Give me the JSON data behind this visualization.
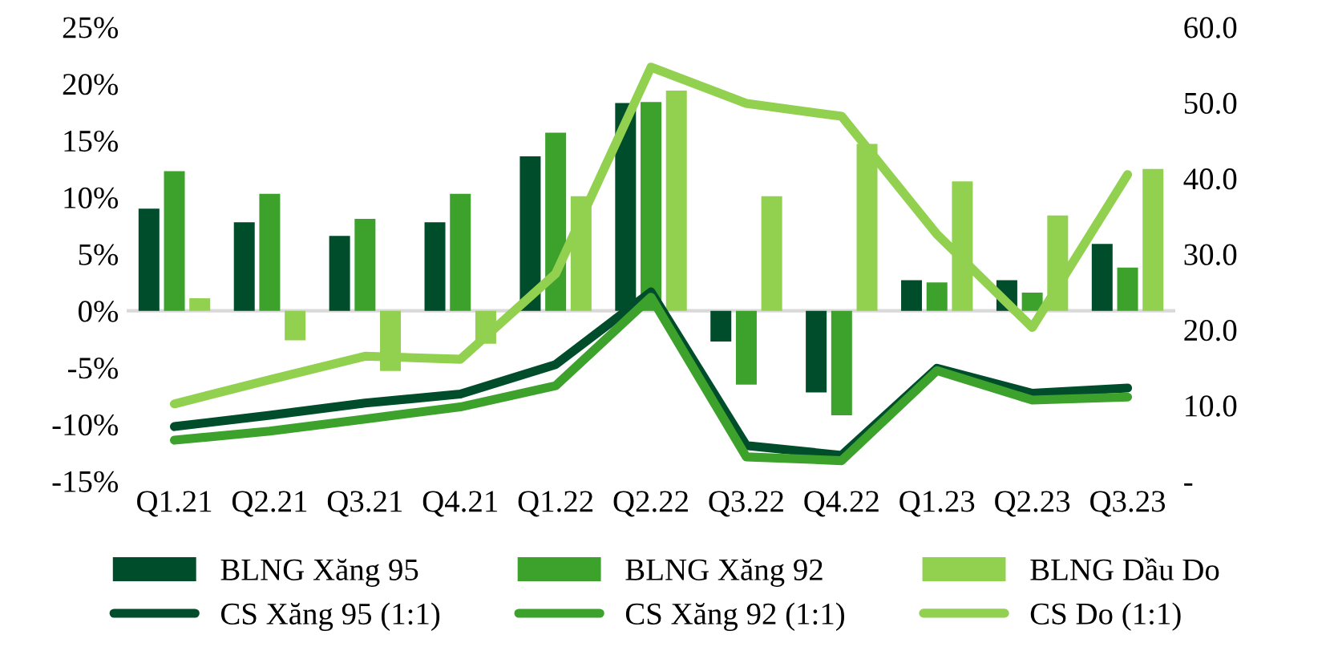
{
  "chart_data": {
    "type": "bar",
    "categories": [
      "Q1.21",
      "Q2.21",
      "Q3.21",
      "Q4.21",
      "Q1.22",
      "Q2.22",
      "Q3.22",
      "Q4.22",
      "Q1.23",
      "Q2.23",
      "Q3.23"
    ],
    "series": [
      {
        "name": "BLNG Xăng 95",
        "color": "#004d2c",
        "values": [
          9.0,
          7.8,
          6.6,
          7.8,
          13.6,
          18.3,
          -2.7,
          -7.2,
          2.7,
          2.7,
          5.9
        ]
      },
      {
        "name": "BLNG Xăng 92",
        "color": "#3ca22c",
        "values": [
          12.3,
          10.3,
          8.1,
          10.3,
          15.7,
          18.4,
          -6.5,
          -9.2,
          2.5,
          1.6,
          3.8
        ]
      },
      {
        "name": "BLNG Dầu Do",
        "color": "#92d050",
        "values": [
          1.1,
          -2.6,
          -5.3,
          -2.9,
          10.1,
          19.4,
          10.1,
          14.7,
          11.4,
          8.4,
          12.5
        ]
      },
      {
        "name": "CS Xăng 95 (1:1)",
        "type": "line",
        "axis": "y2",
        "color": "#004d2c",
        "values": [
          7.2,
          8.7,
          10.3,
          11.5,
          15.4,
          25.0,
          4.7,
          3.4,
          14.9,
          11.6,
          12.3
        ]
      },
      {
        "name": "CS Xăng 92 (1:1)",
        "type": "line",
        "axis": "y2",
        "color": "#3ca22c",
        "values": [
          5.4,
          6.6,
          8.2,
          9.8,
          12.6,
          24.3,
          3.2,
          2.7,
          14.6,
          10.7,
          11.1
        ]
      },
      {
        "name": "CS Do (1:1)",
        "type": "line",
        "axis": "y2",
        "color": "#92d050",
        "values": [
          10.2,
          13.4,
          16.5,
          16.1,
          27.4,
          54.7,
          49.9,
          48.2,
          32.6,
          20.3,
          40.5
        ]
      }
    ],
    "ylim": [
      -15,
      25
    ],
    "yticks": [
      {
        "value": -15,
        "label": "-15%"
      },
      {
        "value": -10,
        "label": "-10%"
      },
      {
        "value": -5,
        "label": "-5%"
      },
      {
        "value": 0,
        "label": "0%"
      },
      {
        "value": 5,
        "label": "5%"
      },
      {
        "value": 10,
        "label": "10%"
      },
      {
        "value": 15,
        "label": "15%"
      },
      {
        "value": 20,
        "label": "20%"
      },
      {
        "value": 25,
        "label": "25%"
      }
    ],
    "y2lim": [
      0,
      60
    ],
    "y2ticks": [
      {
        "value": 0,
        "label": "-"
      },
      {
        "value": 10,
        "label": "10.0"
      },
      {
        "value": 20,
        "label": "20.0"
      },
      {
        "value": 30,
        "label": "30.0"
      },
      {
        "value": 40,
        "label": "40.0"
      },
      {
        "value": 50,
        "label": "50.0"
      },
      {
        "value": 60,
        "label": "60.0"
      }
    ],
    "ref_lines": [
      {
        "axis": "y",
        "value": 0,
        "color": "#d9d9d9"
      }
    ],
    "grid": false,
    "legend": "bottom",
    "marker": "none",
    "line_style": "solid"
  }
}
